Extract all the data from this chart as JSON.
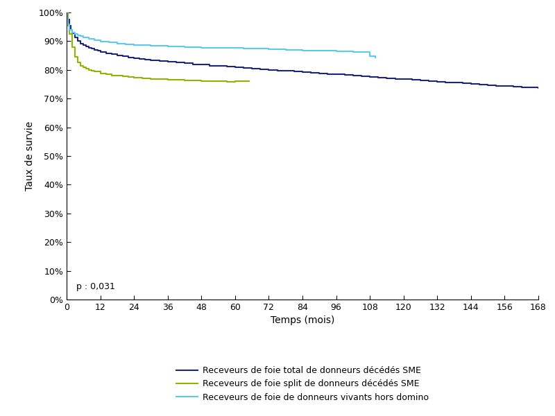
{
  "title": "",
  "xlabel": "Temps (mois)",
  "ylabel": "Taux de survie",
  "xlim": [
    0,
    168
  ],
  "ylim": [
    0.0,
    1.0
  ],
  "xticks": [
    0,
    12,
    24,
    36,
    48,
    60,
    72,
    84,
    96,
    108,
    120,
    132,
    144,
    156,
    168
  ],
  "ytick_vals": [
    0.0,
    0.1,
    0.2,
    0.3,
    0.4,
    0.5,
    0.6,
    0.7,
    0.8,
    0.9,
    1.0
  ],
  "ytick_labels": [
    "0%",
    "10%",
    "20%",
    "30%",
    "40%",
    "50%",
    "60%",
    "70%",
    "80%",
    "90%",
    "100%"
  ],
  "p_value_text": "p : 0,031",
  "legend_labels": [
    "Receveurs de foie total de donneurs décédés SME",
    "Receveurs de foie split de donneurs décédés SME",
    "Receveurs de foie de donneurs vivants hors domino"
  ],
  "color_dark_blue": "#1c2480",
  "color_olive_green": "#8db600",
  "color_light_blue": "#5bc8f5",
  "line_width": 1.5,
  "background_color": "#ffffff",
  "curve1_x": [
    0,
    0.5,
    1,
    1.5,
    2,
    3,
    4,
    5,
    6,
    7,
    8,
    9,
    10,
    11,
    12,
    14,
    16,
    18,
    20,
    22,
    24,
    26,
    28,
    30,
    33,
    36,
    39,
    42,
    45,
    48,
    51,
    54,
    57,
    60,
    63,
    66,
    69,
    72,
    75,
    78,
    81,
    84,
    87,
    90,
    93,
    96,
    99,
    102,
    105,
    108,
    111,
    114,
    117,
    120,
    123,
    126,
    129,
    132,
    135,
    138,
    141,
    144,
    147,
    150,
    153,
    156,
    159,
    162,
    165,
    168
  ],
  "curve1_y": [
    1.0,
    0.975,
    0.955,
    0.94,
    0.928,
    0.912,
    0.9,
    0.892,
    0.886,
    0.882,
    0.877,
    0.874,
    0.87,
    0.867,
    0.863,
    0.858,
    0.854,
    0.85,
    0.847,
    0.844,
    0.841,
    0.839,
    0.836,
    0.834,
    0.831,
    0.828,
    0.825,
    0.823,
    0.82,
    0.818,
    0.815,
    0.813,
    0.811,
    0.808,
    0.806,
    0.804,
    0.802,
    0.8,
    0.798,
    0.796,
    0.794,
    0.792,
    0.79,
    0.788,
    0.786,
    0.784,
    0.782,
    0.78,
    0.778,
    0.776,
    0.773,
    0.771,
    0.769,
    0.767,
    0.765,
    0.763,
    0.761,
    0.759,
    0.757,
    0.755,
    0.753,
    0.751,
    0.749,
    0.747,
    0.745,
    0.743,
    0.741,
    0.739,
    0.738,
    0.737
  ],
  "curve2_x": [
    0,
    0.5,
    1,
    2,
    3,
    4,
    5,
    6,
    7,
    8,
    9,
    10,
    12,
    14,
    16,
    18,
    20,
    22,
    24,
    27,
    30,
    33,
    36,
    39,
    42,
    45,
    48,
    51,
    54,
    57,
    60,
    63,
    65
  ],
  "curve2_y": [
    1.0,
    0.96,
    0.925,
    0.88,
    0.845,
    0.825,
    0.815,
    0.81,
    0.805,
    0.8,
    0.797,
    0.794,
    0.788,
    0.784,
    0.781,
    0.779,
    0.777,
    0.775,
    0.773,
    0.771,
    0.769,
    0.768,
    0.766,
    0.765,
    0.764,
    0.763,
    0.762,
    0.761,
    0.76,
    0.759,
    0.762,
    0.762,
    0.762
  ],
  "curve3_x": [
    0,
    0.3,
    0.6,
    1,
    2,
    3,
    4,
    5,
    6,
    8,
    10,
    12,
    15,
    18,
    21,
    24,
    30,
    36,
    42,
    48,
    54,
    60,
    63,
    66,
    72,
    78,
    84,
    90,
    96,
    102,
    108,
    110
  ],
  "curve3_y": [
    1.0,
    0.975,
    0.955,
    0.94,
    0.93,
    0.925,
    0.92,
    0.917,
    0.913,
    0.908,
    0.903,
    0.899,
    0.895,
    0.891,
    0.889,
    0.887,
    0.884,
    0.882,
    0.88,
    0.878,
    0.877,
    0.876,
    0.875,
    0.874,
    0.872,
    0.87,
    0.868,
    0.866,
    0.864,
    0.862,
    0.848,
    0.844
  ]
}
